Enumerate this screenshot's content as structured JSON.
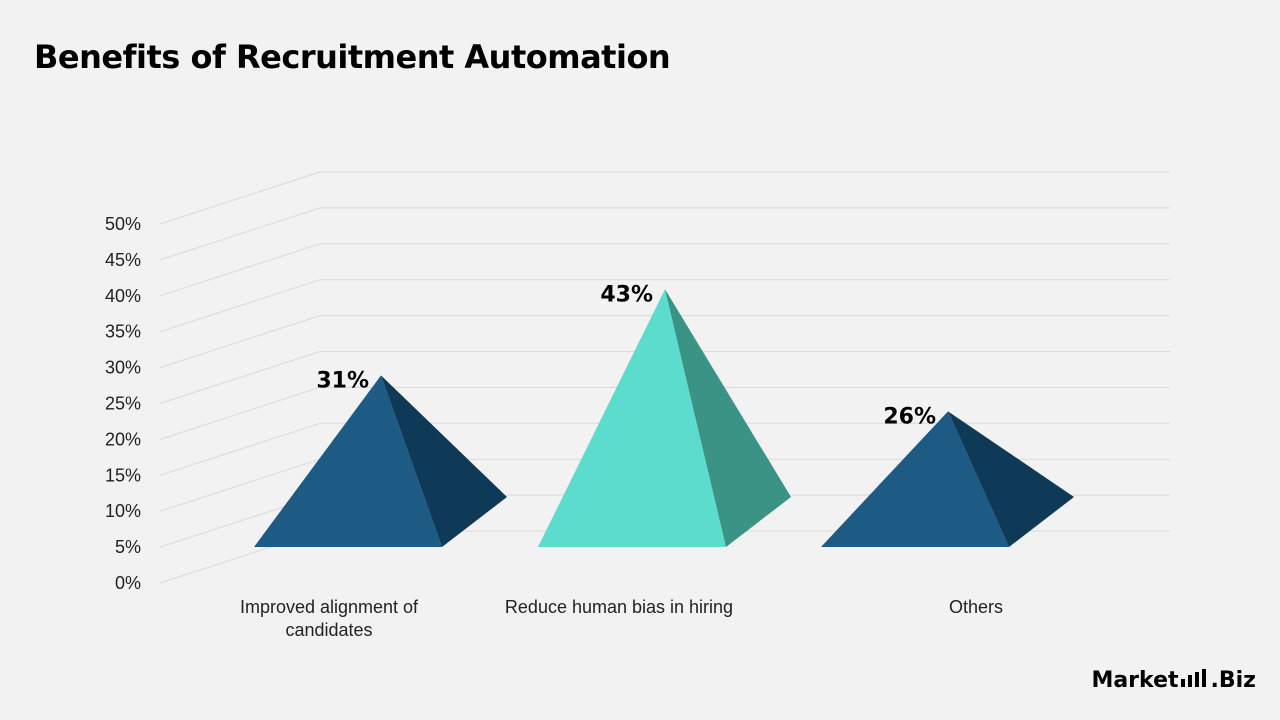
{
  "chart_data": {
    "type": "bar",
    "style": "3d-pyramid",
    "title": "Benefits of Recruitment Automation",
    "categories": [
      "Improved alignment of candidates",
      "Reduce human bias in hiring",
      "Others"
    ],
    "values": [
      31,
      43,
      26
    ],
    "data_labels": [
      "31%",
      "43%",
      "26%"
    ],
    "yticks": [
      "0%",
      "5%",
      "10%",
      "15%",
      "20%",
      "25%",
      "30%",
      "35%",
      "40%",
      "45%",
      "50%"
    ],
    "ylim": [
      0,
      50
    ],
    "grid": true,
    "legend": "none",
    "colors": {
      "series": [
        "#1d5b85",
        "#5cdccd",
        "#1d5b85"
      ],
      "shade": [
        "#0e3a58",
        "#3a9385",
        "#0e3a58"
      ],
      "grid": "#d9d9d9"
    }
  },
  "brand": {
    "name_main": "Market",
    "name_tld": ".Biz"
  }
}
